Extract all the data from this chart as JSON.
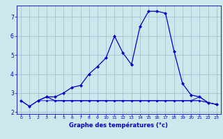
{
  "xlabel": "Graphe des températures (°c)",
  "bg_color": "#cce8ec",
  "grid_color": "#a0b8cc",
  "line_color": "#0000cc",
  "xlim": [
    -0.5,
    23.5
  ],
  "ylim": [
    1.9,
    7.6
  ],
  "yticks": [
    2,
    3,
    4,
    5,
    6,
    7
  ],
  "xticks": [
    0,
    1,
    2,
    3,
    4,
    5,
    6,
    7,
    8,
    9,
    10,
    11,
    12,
    13,
    14,
    15,
    16,
    17,
    18,
    19,
    20,
    21,
    22,
    23
  ],
  "main_x": [
    0,
    1,
    2,
    3,
    4,
    5,
    6,
    7,
    8,
    9,
    10,
    11,
    12,
    13,
    14,
    15,
    16,
    17,
    18,
    19,
    20,
    21,
    22,
    23
  ],
  "main_y": [
    2.6,
    2.3,
    2.6,
    2.8,
    2.8,
    3.0,
    3.3,
    3.4,
    4.0,
    4.4,
    4.85,
    6.0,
    5.1,
    4.5,
    6.5,
    7.3,
    7.3,
    7.2,
    5.2,
    3.5,
    2.9,
    2.8,
    2.5,
    2.4
  ],
  "flat1_x": [
    0,
    1,
    2,
    3,
    4,
    5,
    6,
    7,
    8,
    9,
    10,
    11,
    12,
    13,
    14,
    15,
    16,
    17,
    18,
    19,
    20,
    21,
    22,
    23
  ],
  "flat1_y": [
    2.6,
    2.3,
    2.6,
    2.6,
    2.6,
    2.6,
    2.6,
    2.6,
    2.6,
    2.6,
    2.6,
    2.6,
    2.6,
    2.6,
    2.6,
    2.6,
    2.6,
    2.6,
    2.6,
    2.6,
    2.6,
    2.6,
    2.5,
    2.4
  ],
  "flat2_x": [
    2,
    3,
    4,
    5,
    6,
    7,
    8,
    9,
    10,
    11,
    12,
    13,
    14,
    15,
    16,
    17,
    18,
    19,
    20,
    21,
    22,
    23
  ],
  "flat2_y": [
    2.6,
    2.8,
    2.6,
    2.6,
    2.6,
    2.6,
    2.6,
    2.6,
    2.6,
    2.6,
    2.6,
    2.6,
    2.6,
    2.6,
    2.6,
    2.6,
    2.6,
    2.6,
    2.6,
    2.6,
    2.5,
    2.4
  ],
  "flat3_x": [
    2,
    3,
    4,
    5,
    6,
    7,
    8,
    9,
    10,
    11,
    12,
    13,
    14,
    15,
    16,
    17,
    18,
    19,
    20,
    21,
    22,
    23
  ],
  "flat3_y": [
    2.6,
    2.8,
    2.6,
    2.6,
    2.6,
    2.6,
    2.6,
    2.6,
    2.6,
    2.6,
    2.6,
    2.6,
    2.6,
    2.6,
    2.6,
    2.6,
    2.6,
    2.6,
    2.6,
    2.8,
    2.5,
    2.4
  ]
}
